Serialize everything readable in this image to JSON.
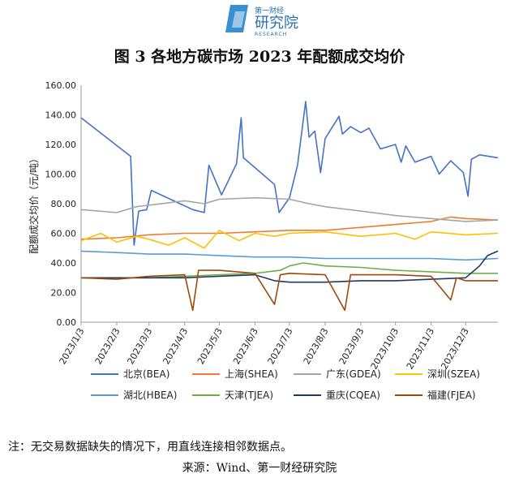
{
  "header": {
    "logo_cn": "第一财经",
    "logo_main": "研究院",
    "logo_en": "RESEARCH"
  },
  "chart_data": {
    "type": "line",
    "title": "图 3 各地方碳市场 2023 年配额成交均价",
    "xlabel": "",
    "ylabel": "配额成交均价（元/吨）",
    "ylim": [
      0,
      160
    ],
    "yticks": [
      "0.00",
      "20.00",
      "40.00",
      "60.00",
      "80.00",
      "100.00",
      "120.00",
      "140.00",
      "160.00"
    ],
    "x_range": [
      "2023/1/3",
      "2023/12/31"
    ],
    "xticks": [
      "2023/1/3",
      "2023/2/3",
      "2023/3/3",
      "2023/4/3",
      "2023/5/3",
      "2023/6/3",
      "2023/7/3",
      "2023/8/3",
      "2023/9/3",
      "2023/10/3",
      "2023/11/3",
      "2023/12/3"
    ],
    "grid": false,
    "legend_position": "bottom",
    "series": [
      {
        "name": "北京(BEA)",
        "color": "#4472c4",
        "points": [
          [
            "2023/1/3",
            138
          ],
          [
            "2023/2/15",
            112
          ],
          [
            "2023/2/18",
            52
          ],
          [
            "2023/2/22",
            75
          ],
          [
            "2023/3/1",
            76
          ],
          [
            "2023/3/5",
            89
          ],
          [
            "2023/4/10",
            76
          ],
          [
            "2023/4/20",
            74
          ],
          [
            "2023/4/24",
            106
          ],
          [
            "2023/5/5",
            86
          ],
          [
            "2023/5/18",
            107
          ],
          [
            "2023/5/22",
            138
          ],
          [
            "2023/5/24",
            111
          ],
          [
            "2023/6/20",
            93
          ],
          [
            "2023/6/24",
            74
          ],
          [
            "2023/7/3",
            84
          ],
          [
            "2023/7/10",
            106
          ],
          [
            "2023/7/17",
            149
          ],
          [
            "2023/7/20",
            125
          ],
          [
            "2023/7/25",
            129
          ],
          [
            "2023/7/30",
            101
          ],
          [
            "2023/8/3",
            124
          ],
          [
            "2023/8/15",
            139
          ],
          [
            "2023/8/18",
            127
          ],
          [
            "2023/8/25",
            132
          ],
          [
            "2023/9/3",
            128
          ],
          [
            "2023/9/10",
            131
          ],
          [
            "2023/9/20",
            117
          ],
          [
            "2023/10/3",
            120
          ],
          [
            "2023/10/8",
            108
          ],
          [
            "2023/10/12",
            119
          ],
          [
            "2023/10/20",
            108
          ],
          [
            "2023/11/3",
            112
          ],
          [
            "2023/11/10",
            100
          ],
          [
            "2023/11/20",
            109
          ],
          [
            "2023/12/1",
            101
          ],
          [
            "2023/12/5",
            85
          ],
          [
            "2023/12/8",
            110
          ],
          [
            "2023/12/15",
            113
          ],
          [
            "2023/12/31",
            111
          ]
        ]
      },
      {
        "name": "上海(SHEA)",
        "color": "#ed7d31",
        "points": [
          [
            "2023/1/3",
            56
          ],
          [
            "2023/2/3",
            57
          ],
          [
            "2023/3/3",
            59
          ],
          [
            "2023/4/3",
            60
          ],
          [
            "2023/5/3",
            60
          ],
          [
            "2023/6/3",
            61
          ],
          [
            "2023/7/3",
            62
          ],
          [
            "2023/8/3",
            62
          ],
          [
            "2023/9/3",
            64
          ],
          [
            "2023/10/3",
            66
          ],
          [
            "2023/11/3",
            68
          ],
          [
            "2023/11/20",
            71
          ],
          [
            "2023/12/3",
            70
          ],
          [
            "2023/12/31",
            69
          ]
        ]
      },
      {
        "name": "广东(GDEA)",
        "color": "#a5a5a5",
        "points": [
          [
            "2023/1/3",
            76
          ],
          [
            "2023/2/3",
            74
          ],
          [
            "2023/2/20",
            78
          ],
          [
            "2023/3/3",
            79
          ],
          [
            "2023/4/3",
            82
          ],
          [
            "2023/4/20",
            80
          ],
          [
            "2023/5/3",
            83
          ],
          [
            "2023/6/3",
            84
          ],
          [
            "2023/7/3",
            83
          ],
          [
            "2023/7/20",
            80
          ],
          [
            "2023/8/3",
            78
          ],
          [
            "2023/9/3",
            75
          ],
          [
            "2023/10/3",
            72
          ],
          [
            "2023/11/3",
            70
          ],
          [
            "2023/12/3",
            68
          ],
          [
            "2023/12/31",
            69
          ]
        ]
      },
      {
        "name": "深圳(SZEA)",
        "color": "#ffc000",
        "points": [
          [
            "2023/1/3",
            55
          ],
          [
            "2023/1/20",
            60
          ],
          [
            "2023/2/3",
            54
          ],
          [
            "2023/2/20",
            58
          ],
          [
            "2023/3/3",
            56
          ],
          [
            "2023/3/20",
            52
          ],
          [
            "2023/4/3",
            57
          ],
          [
            "2023/4/20",
            50
          ],
          [
            "2023/5/3",
            62
          ],
          [
            "2023/5/20",
            55
          ],
          [
            "2023/6/3",
            60
          ],
          [
            "2023/6/20",
            58
          ],
          [
            "2023/7/3",
            60
          ],
          [
            "2023/8/3",
            61
          ],
          [
            "2023/9/3",
            58
          ],
          [
            "2023/10/3",
            60
          ],
          [
            "2023/10/20",
            56
          ],
          [
            "2023/11/3",
            61
          ],
          [
            "2023/12/3",
            59
          ],
          [
            "2023/12/31",
            60
          ]
        ]
      },
      {
        "name": "湖北(HBEA)",
        "color": "#5b9bd5",
        "points": [
          [
            "2023/1/3",
            48
          ],
          [
            "2023/2/3",
            47
          ],
          [
            "2023/3/3",
            46
          ],
          [
            "2023/4/3",
            46
          ],
          [
            "2023/5/3",
            45
          ],
          [
            "2023/6/3",
            44
          ],
          [
            "2023/7/3",
            44
          ],
          [
            "2023/8/3",
            43
          ],
          [
            "2023/9/3",
            43
          ],
          [
            "2023/10/3",
            43
          ],
          [
            "2023/11/3",
            43
          ],
          [
            "2023/12/3",
            42
          ],
          [
            "2023/12/31",
            43
          ]
        ]
      },
      {
        "name": "天津(TJEA)",
        "color": "#70ad47",
        "points": [
          [
            "2023/1/3",
            30
          ],
          [
            "2023/2/3",
            30
          ],
          [
            "2023/3/3",
            30
          ],
          [
            "2023/4/3",
            31
          ],
          [
            "2023/5/3",
            32
          ],
          [
            "2023/6/3",
            33
          ],
          [
            "2023/6/25",
            35
          ],
          [
            "2023/7/3",
            38
          ],
          [
            "2023/7/15",
            40
          ],
          [
            "2023/8/3",
            38
          ],
          [
            "2023/9/3",
            37
          ],
          [
            "2023/10/3",
            35
          ],
          [
            "2023/11/3",
            34
          ],
          [
            "2023/12/3",
            33
          ],
          [
            "2023/12/31",
            33
          ]
        ]
      },
      {
        "name": "重庆(CQEA)",
        "color": "#1f3864",
        "points": [
          [
            "2023/1/3",
            30
          ],
          [
            "2023/2/3",
            30
          ],
          [
            "2023/3/3",
            30
          ],
          [
            "2023/4/3",
            30
          ],
          [
            "2023/5/3",
            31
          ],
          [
            "2023/6/3",
            32
          ],
          [
            "2023/6/20",
            28
          ],
          [
            "2023/7/3",
            27
          ],
          [
            "2023/8/3",
            27
          ],
          [
            "2023/9/3",
            28
          ],
          [
            "2023/10/3",
            28
          ],
          [
            "2023/11/3",
            29
          ],
          [
            "2023/12/3",
            30
          ],
          [
            "2023/12/15",
            38
          ],
          [
            "2023/12/22",
            45
          ],
          [
            "2023/12/31",
            48
          ]
        ]
      },
      {
        "name": "福建(FJEA)",
        "color": "#9e480e",
        "points": [
          [
            "2023/1/3",
            30
          ],
          [
            "2023/2/3",
            29
          ],
          [
            "2023/3/3",
            31
          ],
          [
            "2023/4/3",
            32
          ],
          [
            "2023/4/10",
            8
          ],
          [
            "2023/4/15",
            35
          ],
          [
            "2023/5/3",
            35
          ],
          [
            "2023/6/3",
            33
          ],
          [
            "2023/6/20",
            12
          ],
          [
            "2023/6/25",
            32
          ],
          [
            "2023/7/3",
            33
          ],
          [
            "2023/8/3",
            32
          ],
          [
            "2023/8/20",
            8
          ],
          [
            "2023/8/25",
            32
          ],
          [
            "2023/9/3",
            32
          ],
          [
            "2023/10/3",
            32
          ],
          [
            "2023/11/3",
            31
          ],
          [
            "2023/11/20",
            15
          ],
          [
            "2023/11/25",
            30
          ],
          [
            "2023/12/3",
            28
          ],
          [
            "2023/12/31",
            28
          ]
        ]
      }
    ]
  },
  "footer": {
    "note": "注：无交易数据缺失的情况下，用直线连接相邻数据点。",
    "source": "来源：Wind、第一财经研究院"
  }
}
